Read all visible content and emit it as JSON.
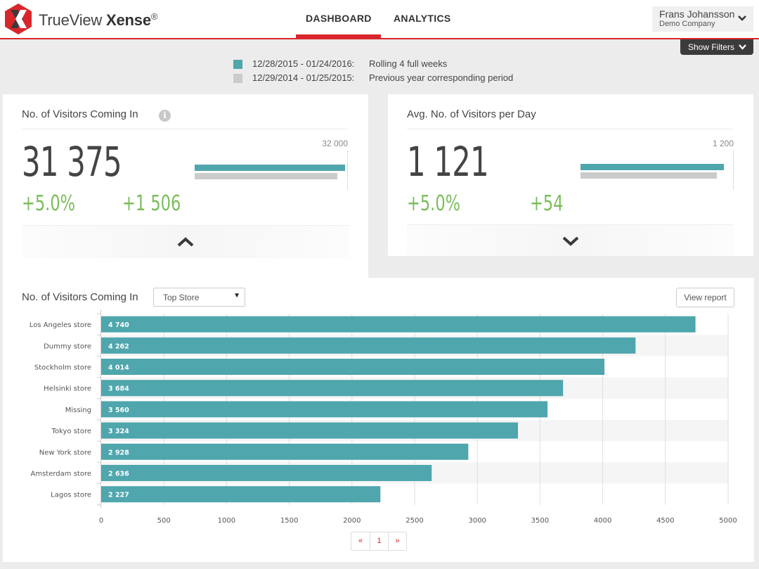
{
  "header": {
    "brand_light": "TrueView ",
    "brand_bold": "Xense",
    "brand_reg": "®",
    "nav": [
      {
        "label": "DASHBOARD",
        "active": true
      },
      {
        "label": "ANALYTICS",
        "active": false
      }
    ],
    "user": {
      "name": "Frans Johansson",
      "company": "Demo Company"
    },
    "show_filters_label": "Show Filters"
  },
  "colors": {
    "brand_red": "#d9262c",
    "current_period": "#4fa6ad",
    "previous_period": "#cbcbcb",
    "positive": "#7abd5a"
  },
  "legend": [
    {
      "date_range": "12/28/2015 - 01/24/2016:",
      "label": "Rolling 4 full weeks",
      "color": "#4fa6ad"
    },
    {
      "date_range": "12/29/2014 - 01/25/2015:",
      "label": "Previous year corresponding period",
      "color": "#cbcbcb"
    }
  ],
  "kpis": [
    {
      "title": "No. of Visitors Coming In",
      "has_info": true,
      "value": "31 375",
      "delta_pct": "+5.0%",
      "delta_abs": "+1 506",
      "scale_max_label": "32 000",
      "scale_max": 32000,
      "current": 31375,
      "previous": 29869,
      "expand_state": "expanded"
    },
    {
      "title": "Avg. No. of Visitors per Day",
      "has_info": false,
      "value": "1 121",
      "delta_pct": "+5.0%",
      "delta_abs": "+54",
      "scale_max_label": "1 200",
      "scale_max": 1200,
      "current": 1121,
      "previous": 1067,
      "expand_state": "collapsed"
    }
  ],
  "detail": {
    "title": "No. of Visitors Coming In",
    "select_value": "Top Store",
    "view_report_label": "View report",
    "pagination": [
      "«",
      "1",
      "»"
    ]
  },
  "chart_data": {
    "type": "bar",
    "orientation": "horizontal",
    "title": "No. of Visitors Coming In",
    "categories": [
      "Los Angeles store",
      "Dummy store",
      "Stockholm store",
      "Helsinki store",
      "Missing",
      "Tokyo store",
      "New York store",
      "Amsterdam store",
      "Lagos store"
    ],
    "values": [
      4740,
      4262,
      4014,
      3684,
      3560,
      3324,
      2928,
      2636,
      2227
    ],
    "value_labels": [
      "4 740",
      "4 262",
      "4 014",
      "3 684",
      "3 560",
      "3 324",
      "2 928",
      "2 636",
      "2 227"
    ],
    "xlim": [
      0,
      5000
    ],
    "xticks": [
      0,
      500,
      1000,
      1500,
      2000,
      2500,
      3000,
      3500,
      4000,
      4500,
      5000
    ],
    "grid": true,
    "xlabel": "",
    "ylabel": ""
  }
}
